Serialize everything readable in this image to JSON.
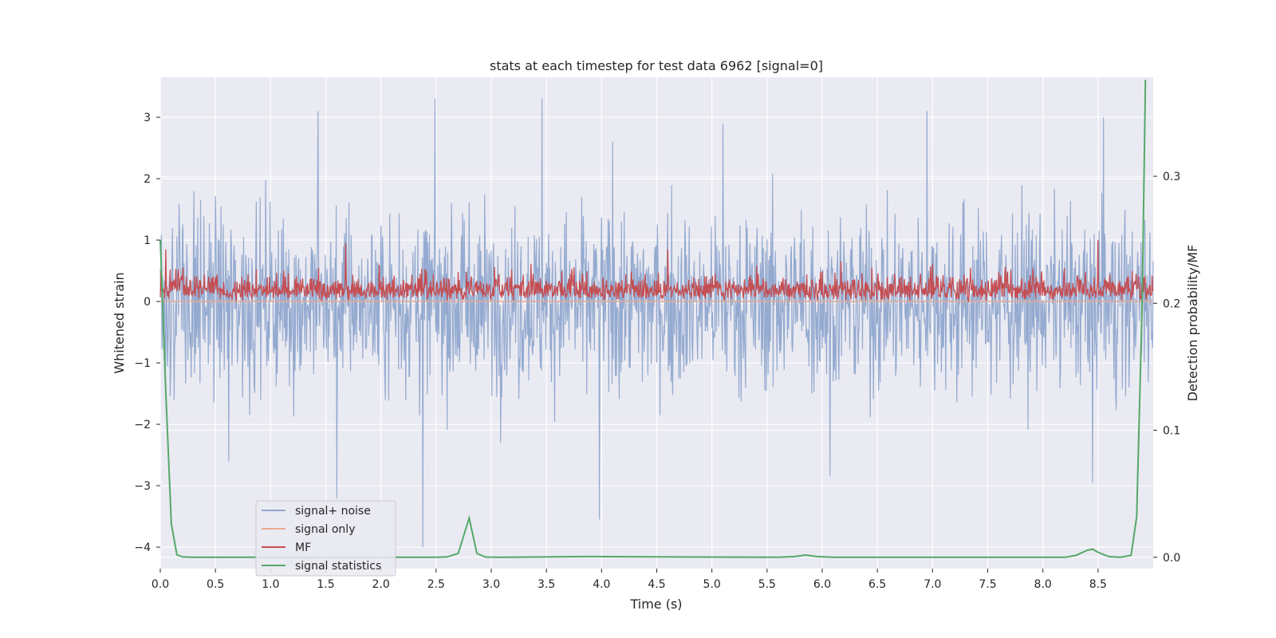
{
  "chart_data": {
    "type": "line",
    "title": "stats at each timestep for test data 6962 [signal=0]",
    "xlabel": "Time (s)",
    "ylabel": "Whitened strain",
    "y2label": "Detection probability/MF",
    "xlim": [
      0.0,
      9.0
    ],
    "ylim": [
      -4.35,
      3.65
    ],
    "y2lim": [
      -0.0089,
      0.3779
    ],
    "xticks": [
      0.0,
      0.5,
      1.0,
      1.5,
      2.0,
      2.5,
      3.0,
      3.5,
      4.0,
      4.5,
      5.0,
      5.5,
      6.0,
      6.5,
      7.0,
      7.5,
      8.0,
      8.5
    ],
    "xtick_labels": [
      "0.0",
      "0.5",
      "1.0",
      "1.5",
      "2.0",
      "2.5",
      "3.0",
      "3.5",
      "4.0",
      "4.5",
      "5.0",
      "5.5",
      "6.0",
      "6.5",
      "7.0",
      "7.5",
      "8.0",
      "8.5"
    ],
    "yticks": [
      -4,
      -3,
      -2,
      -1,
      0,
      1,
      2,
      3
    ],
    "ytick_labels": [
      "−4",
      "−3",
      "−2",
      "−1",
      "0",
      "1",
      "2",
      "3"
    ],
    "y2ticks": [
      0.0,
      0.1,
      0.2,
      0.3
    ],
    "y2tick_labels": [
      "0.0",
      "0.1",
      "0.2",
      "0.3"
    ],
    "grid": true,
    "legend_position": "lower-left",
    "legend": [
      {
        "name": "signal+ noise",
        "color": "#8fa6ce"
      },
      {
        "name": "signal only",
        "color": "#e9a98f"
      },
      {
        "name": "MF",
        "color": "#c44e52"
      },
      {
        "name": "signal statistics",
        "color": "#55a868"
      }
    ],
    "series": [
      {
        "name": "signal+ noise",
        "axis": "left",
        "description": "Dense whitened strain noise, mostly within -2.5..3 with occasional spikes",
        "envelope_typical": [
          -2.0,
          2.0
        ],
        "spikes": [
          {
            "x": 1.43,
            "y": 3.1
          },
          {
            "x": 2.49,
            "y": 3.3
          },
          {
            "x": 3.46,
            "y": 3.3
          },
          {
            "x": 4.1,
            "y": 2.6
          },
          {
            "x": 5.1,
            "y": 2.9
          },
          {
            "x": 6.95,
            "y": 3.1
          },
          {
            "x": 8.55,
            "y": 3.0
          },
          {
            "x": 1.6,
            "y": -3.2
          },
          {
            "x": 2.38,
            "y": -4.0
          },
          {
            "x": 3.98,
            "y": -3.55
          },
          {
            "x": 6.07,
            "y": -2.85
          },
          {
            "x": 8.45,
            "y": -2.95
          },
          {
            "x": 0.62,
            "y": -2.6
          }
        ]
      },
      {
        "name": "signal only",
        "axis": "left",
        "x": [
          0.0,
          9.0
        ],
        "y": [
          0.0,
          0.0
        ]
      },
      {
        "name": "MF",
        "axis": "left",
        "description": "Matched filter output, non-negative, mostly 0..0.7 with peaks near 0.9-1.0",
        "envelope_typical": [
          0.0,
          0.6
        ],
        "peaks": [
          {
            "x": 0.05,
            "y": 0.85
          },
          {
            "x": 1.68,
            "y": 0.95
          },
          {
            "x": 4.6,
            "y": 0.85
          },
          {
            "x": 8.5,
            "y": 1.0
          }
        ]
      },
      {
        "name": "signal statistics",
        "axis": "right",
        "x": [
          0.0,
          0.05,
          0.1,
          0.15,
          0.2,
          0.3,
          2.5,
          2.6,
          2.7,
          2.8,
          2.87,
          2.95,
          3.05,
          3.85,
          3.95,
          5.6,
          5.75,
          5.85,
          5.95,
          6.1,
          8.2,
          8.3,
          8.4,
          8.45,
          8.5,
          8.6,
          8.7,
          8.8,
          8.85,
          8.9,
          8.93
        ],
        "y": [
          0.25,
          0.13,
          0.0265,
          0.002,
          0.0003,
          0.0,
          0.0,
          0.0003,
          0.003,
          0.031,
          0.003,
          0.0002,
          0.0,
          0.0006,
          0.0006,
          0.0,
          0.0006,
          0.0018,
          0.0006,
          0.0,
          0.0,
          0.0015,
          0.0055,
          0.0065,
          0.004,
          0.0005,
          0.0,
          0.0015,
          0.032,
          0.2,
          0.376
        ]
      }
    ]
  }
}
